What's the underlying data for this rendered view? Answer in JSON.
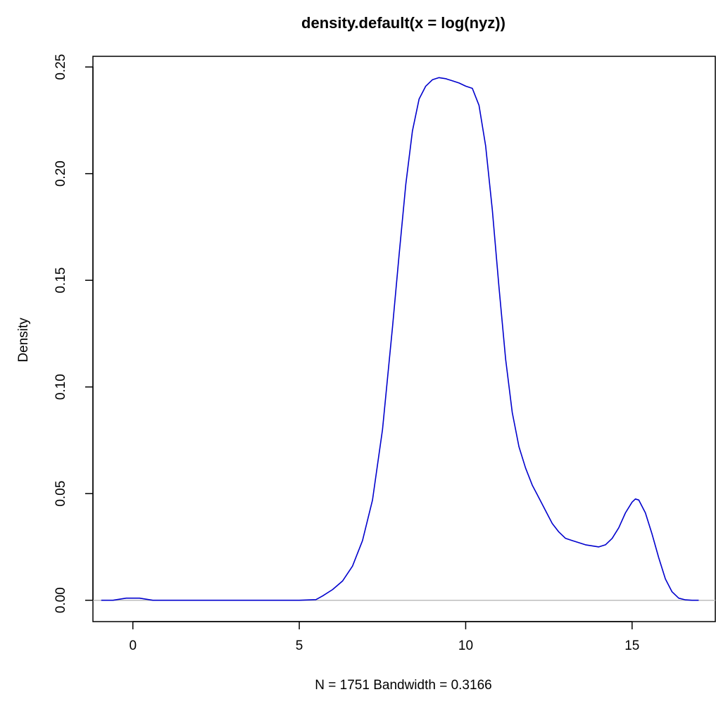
{
  "chart_data": {
    "type": "line",
    "title": "density.default(x = log(nyz))",
    "xlabel": "N = 1751   Bandwidth = 0.3166",
    "ylabel": "Density",
    "xlim": [
      -1.2,
      17.5
    ],
    "ylim": [
      -0.01,
      0.255
    ],
    "x_ticks": [
      0,
      5,
      10,
      15
    ],
    "x_tick_labels": [
      "0",
      "5",
      "10",
      "15"
    ],
    "y_ticks": [
      0.0,
      0.05,
      0.1,
      0.15,
      0.2,
      0.25
    ],
    "y_tick_labels": [
      "0.00",
      "0.05",
      "0.10",
      "0.15",
      "0.20",
      "0.25"
    ],
    "grid": false,
    "baseline_y": 0,
    "series": [
      {
        "color": "#0000cd",
        "x": [
          -0.95,
          -0.6,
          -0.4,
          -0.2,
          0,
          0.2,
          0.4,
          0.6,
          1,
          2,
          3,
          4,
          5,
          5.5,
          5.7,
          6.0,
          6.3,
          6.6,
          6.9,
          7.2,
          7.5,
          7.8,
          8.0,
          8.2,
          8.4,
          8.6,
          8.8,
          9.0,
          9.2,
          9.4,
          9.6,
          9.8,
          10.0,
          10.2,
          10.4,
          10.6,
          10.8,
          11.0,
          11.2,
          11.4,
          11.6,
          11.8,
          12.0,
          12.2,
          12.4,
          12.6,
          12.8,
          13.0,
          13.2,
          13.4,
          13.6,
          13.8,
          14.0,
          14.2,
          14.4,
          14.6,
          14.8,
          15.0,
          15.1,
          15.2,
          15.4,
          15.6,
          15.8,
          16.0,
          16.2,
          16.4,
          16.6,
          16.8,
          17.0
        ],
        "y": [
          0.0,
          0.0,
          0.0005,
          0.001,
          0.001,
          0.001,
          0.0005,
          0.0,
          0.0,
          0.0,
          0.0,
          0.0,
          0.0,
          0.0003,
          0.002,
          0.005,
          0.009,
          0.016,
          0.028,
          0.047,
          0.08,
          0.128,
          0.162,
          0.195,
          0.22,
          0.235,
          0.241,
          0.244,
          0.245,
          0.2445,
          0.2435,
          0.2425,
          0.241,
          0.24,
          0.232,
          0.213,
          0.183,
          0.147,
          0.113,
          0.088,
          0.072,
          0.062,
          0.054,
          0.048,
          0.042,
          0.036,
          0.032,
          0.029,
          0.028,
          0.027,
          0.026,
          0.0255,
          0.025,
          0.026,
          0.029,
          0.034,
          0.041,
          0.046,
          0.0475,
          0.047,
          0.041,
          0.031,
          0.02,
          0.01,
          0.004,
          0.001,
          0.0002,
          0.0,
          0.0
        ]
      }
    ]
  }
}
